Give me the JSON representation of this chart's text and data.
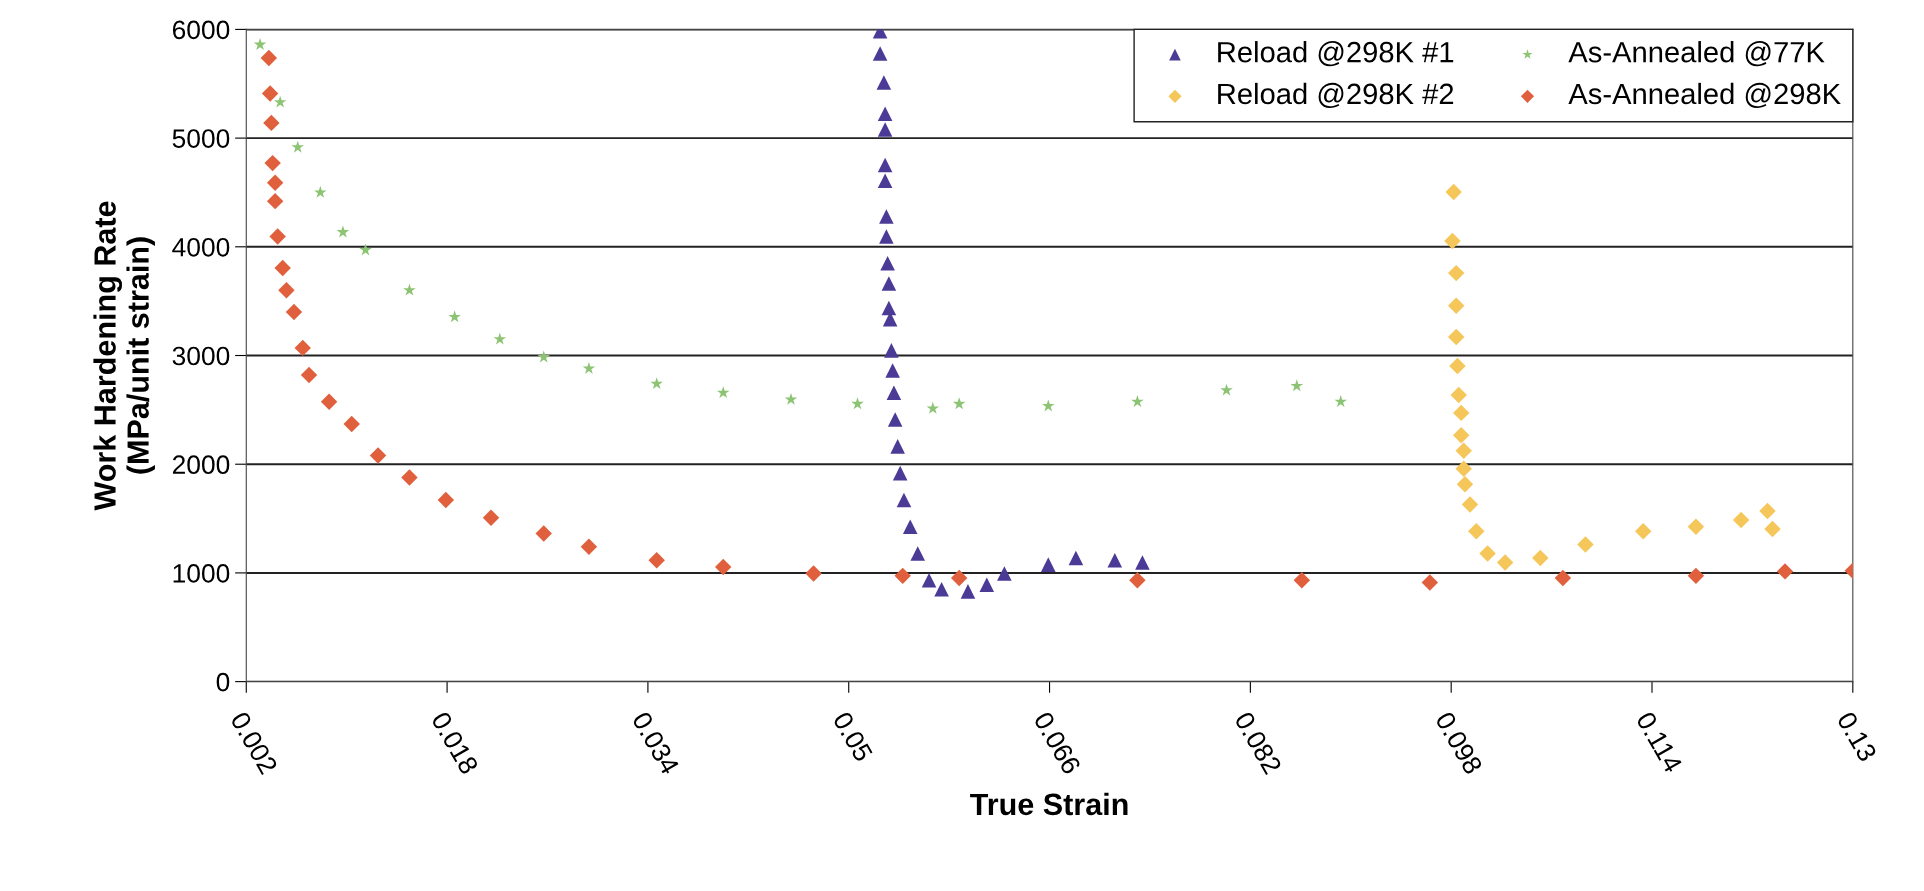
{
  "chart_data": {
    "type": "scatter",
    "xlabel": "True Strain",
    "ylabel": "Work Hardening Rate\n(MPa/unit strain)",
    "xlim": [
      0.002,
      0.13
    ],
    "xticks": [
      0.002,
      0.018,
      0.034,
      0.05,
      0.066,
      0.082,
      0.098,
      0.114,
      0.13
    ],
    "ylim": [
      0,
      6000
    ],
    "yticks": [
      0,
      1000,
      2000,
      3000,
      4000,
      5000,
      6000
    ],
    "grid": "y",
    "legend": "top right",
    "series": [
      {
        "name": "Reload @298K #1",
        "color": "#4b3a96",
        "marker": "triangle",
        "x": [
          0.0525,
          0.0525,
          0.0528,
          0.0529,
          0.0529,
          0.0529,
          0.0529,
          0.053,
          0.053,
          0.0531,
          0.0532,
          0.0532,
          0.0533,
          0.0534,
          0.0535,
          0.0536,
          0.0537,
          0.0539,
          0.0541,
          0.0544,
          0.0549,
          0.0555,
          0.0564,
          0.0574,
          0.0595,
          0.061,
          0.0624,
          0.0659,
          0.0681,
          0.0712,
          0.0734
        ],
        "values": [
          5983,
          5778,
          5511,
          5224,
          5080,
          4752,
          4608,
          4279,
          4094,
          3848,
          3663,
          3437,
          3335,
          3047,
          2862,
          2657,
          2411,
          2164,
          1918,
          1671,
          1425,
          1179,
          932,
          850,
          830,
          891,
          994,
          1076,
          1138,
          1117,
          1096
        ]
      },
      {
        "name": "Reload @298K #2",
        "color": "#f5c65a",
        "marker": "diamond",
        "x": [
          0.0982,
          0.0981,
          0.0984,
          0.0984,
          0.0984,
          0.0985,
          0.0986,
          0.0988,
          0.0988,
          0.099,
          0.099,
          0.0991,
          0.0995,
          0.1,
          0.1009,
          0.1023,
          0.1051,
          0.1087,
          0.1133,
          0.1175,
          0.1211,
          0.1232,
          0.1236
        ],
        "values": [
          4505,
          4053,
          3758,
          3458,
          3170,
          2903,
          2637,
          2472,
          2267,
          2123,
          1959,
          1815,
          1630,
          1384,
          1179,
          1096,
          1138,
          1261,
          1384,
          1425,
          1487,
          1569,
          1404
        ]
      },
      {
        "name": "As-Annealed @77K",
        "color": "#8cc474",
        "marker": "star",
        "x": [
          0.0031,
          0.0047,
          0.0061,
          0.0079,
          0.0097,
          0.0115,
          0.015,
          0.0186,
          0.0222,
          0.0257,
          0.0293,
          0.0347,
          0.04,
          0.0454,
          0.0507,
          0.0567,
          0.0588,
          0.0659,
          0.073,
          0.0801,
          0.0857,
          0.0892
        ],
        "values": [
          5860,
          5330,
          4915,
          4500,
          4135,
          3970,
          3600,
          3355,
          3150,
          2985,
          2880,
          2740,
          2657,
          2595,
          2555,
          2513,
          2555,
          2535,
          2575,
          2680,
          2720,
          2575
        ]
      },
      {
        "name": "As-Annealed @298K",
        "color": "#e0603e",
        "marker": "diamond",
        "x": [
          0.0038,
          0.0039,
          0.004,
          0.0041,
          0.0043,
          0.0043,
          0.0045,
          0.0049,
          0.0052,
          0.0058,
          0.0065,
          0.007,
          0.0086,
          0.0104,
          0.0125,
          0.015,
          0.0179,
          0.0215,
          0.0257,
          0.0293,
          0.0347,
          0.04,
          0.0472,
          0.0543,
          0.0588,
          0.073,
          0.0861,
          0.0963,
          0.1069,
          0.1175,
          0.1246,
          0.13
        ],
        "values": [
          5737,
          5410,
          5140,
          4770,
          4590,
          4420,
          4095,
          3805,
          3600,
          3400,
          3070,
          2820,
          2575,
          2370,
          2080,
          1877,
          1670,
          1507,
          1363,
          1240,
          1117,
          1055,
          994,
          973,
          953,
          932,
          932,
          912,
          953,
          973,
          1014,
          1020
        ]
      }
    ]
  }
}
